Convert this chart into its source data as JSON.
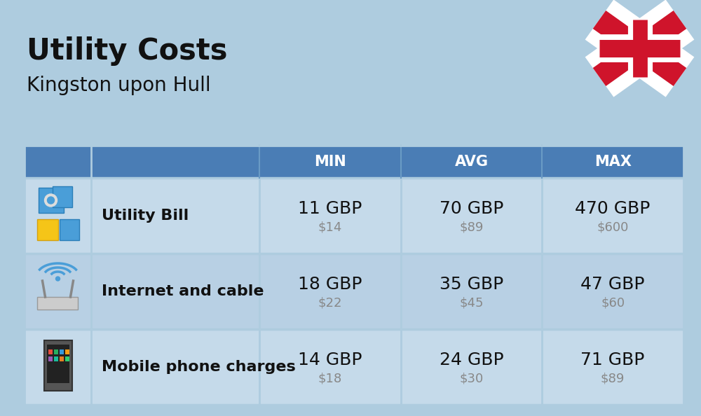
{
  "title": "Utility Costs",
  "subtitle": "Kingston upon Hull",
  "background_color": "#aeccdf",
  "header_color": "#4a7db5",
  "header_icon_label_color": "#4a7db5",
  "header_text_color": "#ffffff",
  "row_color": "#c5daea",
  "row_alt_color": "#b8d0e4",
  "divider_color": "#aeccdf",
  "col_headers": [
    "MIN",
    "AVG",
    "MAX"
  ],
  "rows": [
    {
      "label": "Utility Bill",
      "min_gbp": "11 GBP",
      "min_usd": "$14",
      "avg_gbp": "70 GBP",
      "avg_usd": "$89",
      "max_gbp": "470 GBP",
      "max_usd": "$600",
      "icon": "utility"
    },
    {
      "label": "Internet and cable",
      "min_gbp": "18 GBP",
      "min_usd": "$22",
      "avg_gbp": "35 GBP",
      "avg_usd": "$45",
      "max_gbp": "47 GBP",
      "max_usd": "$60",
      "icon": "internet"
    },
    {
      "label": "Mobile phone charges",
      "min_gbp": "14 GBP",
      "min_usd": "$18",
      "avg_gbp": "24 GBP",
      "avg_usd": "$30",
      "max_gbp": "71 GBP",
      "max_usd": "$89",
      "icon": "mobile"
    }
  ],
  "title_fontsize": 30,
  "subtitle_fontsize": 20,
  "header_fontsize": 15,
  "value_gbp_fontsize": 18,
  "value_usd_fontsize": 13,
  "label_fontsize": 16
}
